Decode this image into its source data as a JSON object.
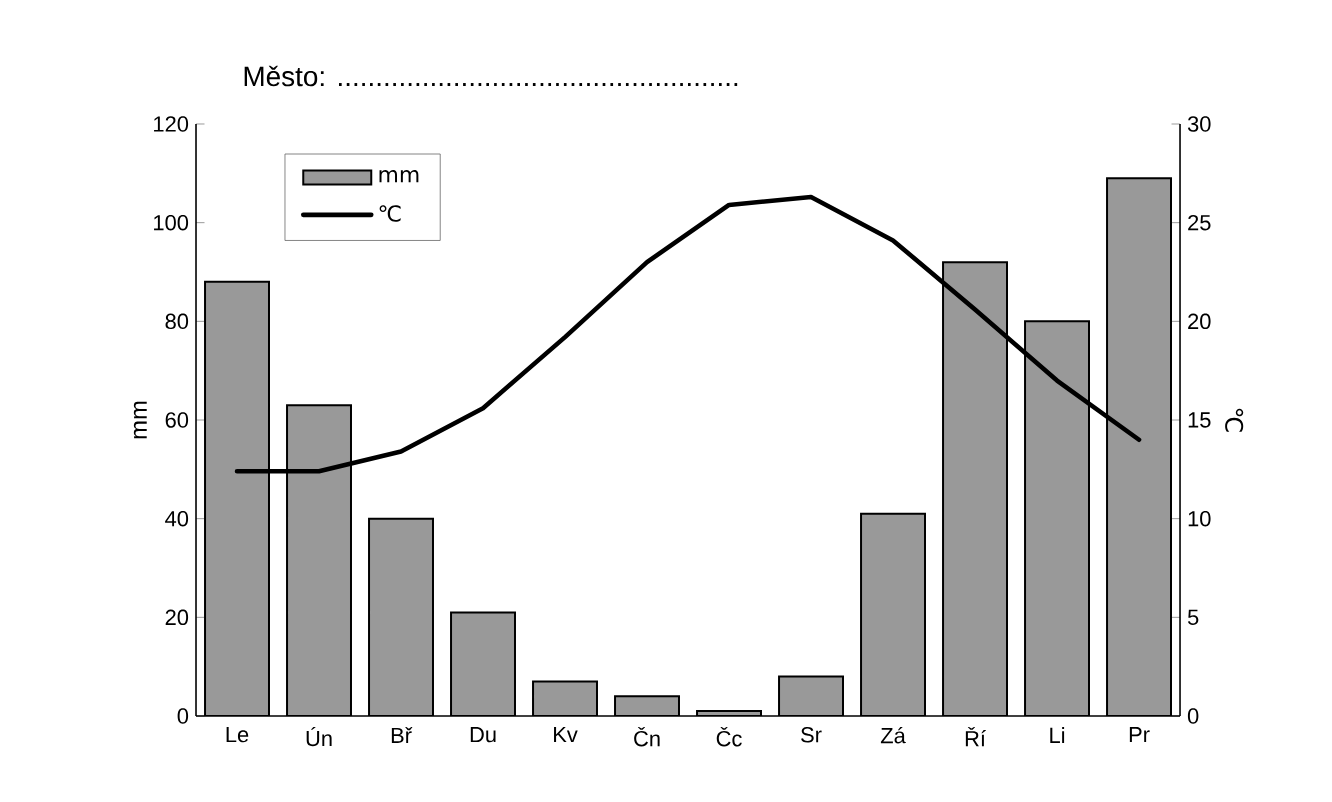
{
  "chart_data": {
    "type": "bar",
    "title": "Město:                 ....................................................",
    "ylabel": "mm",
    "y2label": "℃",
    "categories": [
      "Le",
      "Ún",
      "Bř",
      "Du",
      "Kv",
      "Čn",
      "Čc",
      "Sr",
      "Zá",
      "Ří",
      "Li",
      "Pr"
    ],
    "series": [
      {
        "name": "mm",
        "color": "#999999",
        "values": [
          88,
          63,
          40,
          21,
          7,
          4,
          1,
          8,
          41,
          92,
          80,
          109
        ]
      },
      {
        "name": "℃",
        "type": "line",
        "axis": "y2",
        "color": "#000000",
        "values": [
          12.4,
          12.4,
          13.4,
          15.6,
          19.2,
          23.0,
          25.9,
          26.3,
          24.1,
          20.6,
          17.0,
          14.0
        ]
      }
    ],
    "ylim": [
      0,
      120
    ],
    "yticks": [
      0,
      20,
      40,
      60,
      80,
      100,
      120
    ],
    "y2lim": [
      0,
      30
    ],
    "y2ticks": [
      0,
      5,
      10,
      15,
      20,
      25,
      30
    ],
    "legend": "top left",
    "marker": "none",
    "line_style": "solid"
  }
}
